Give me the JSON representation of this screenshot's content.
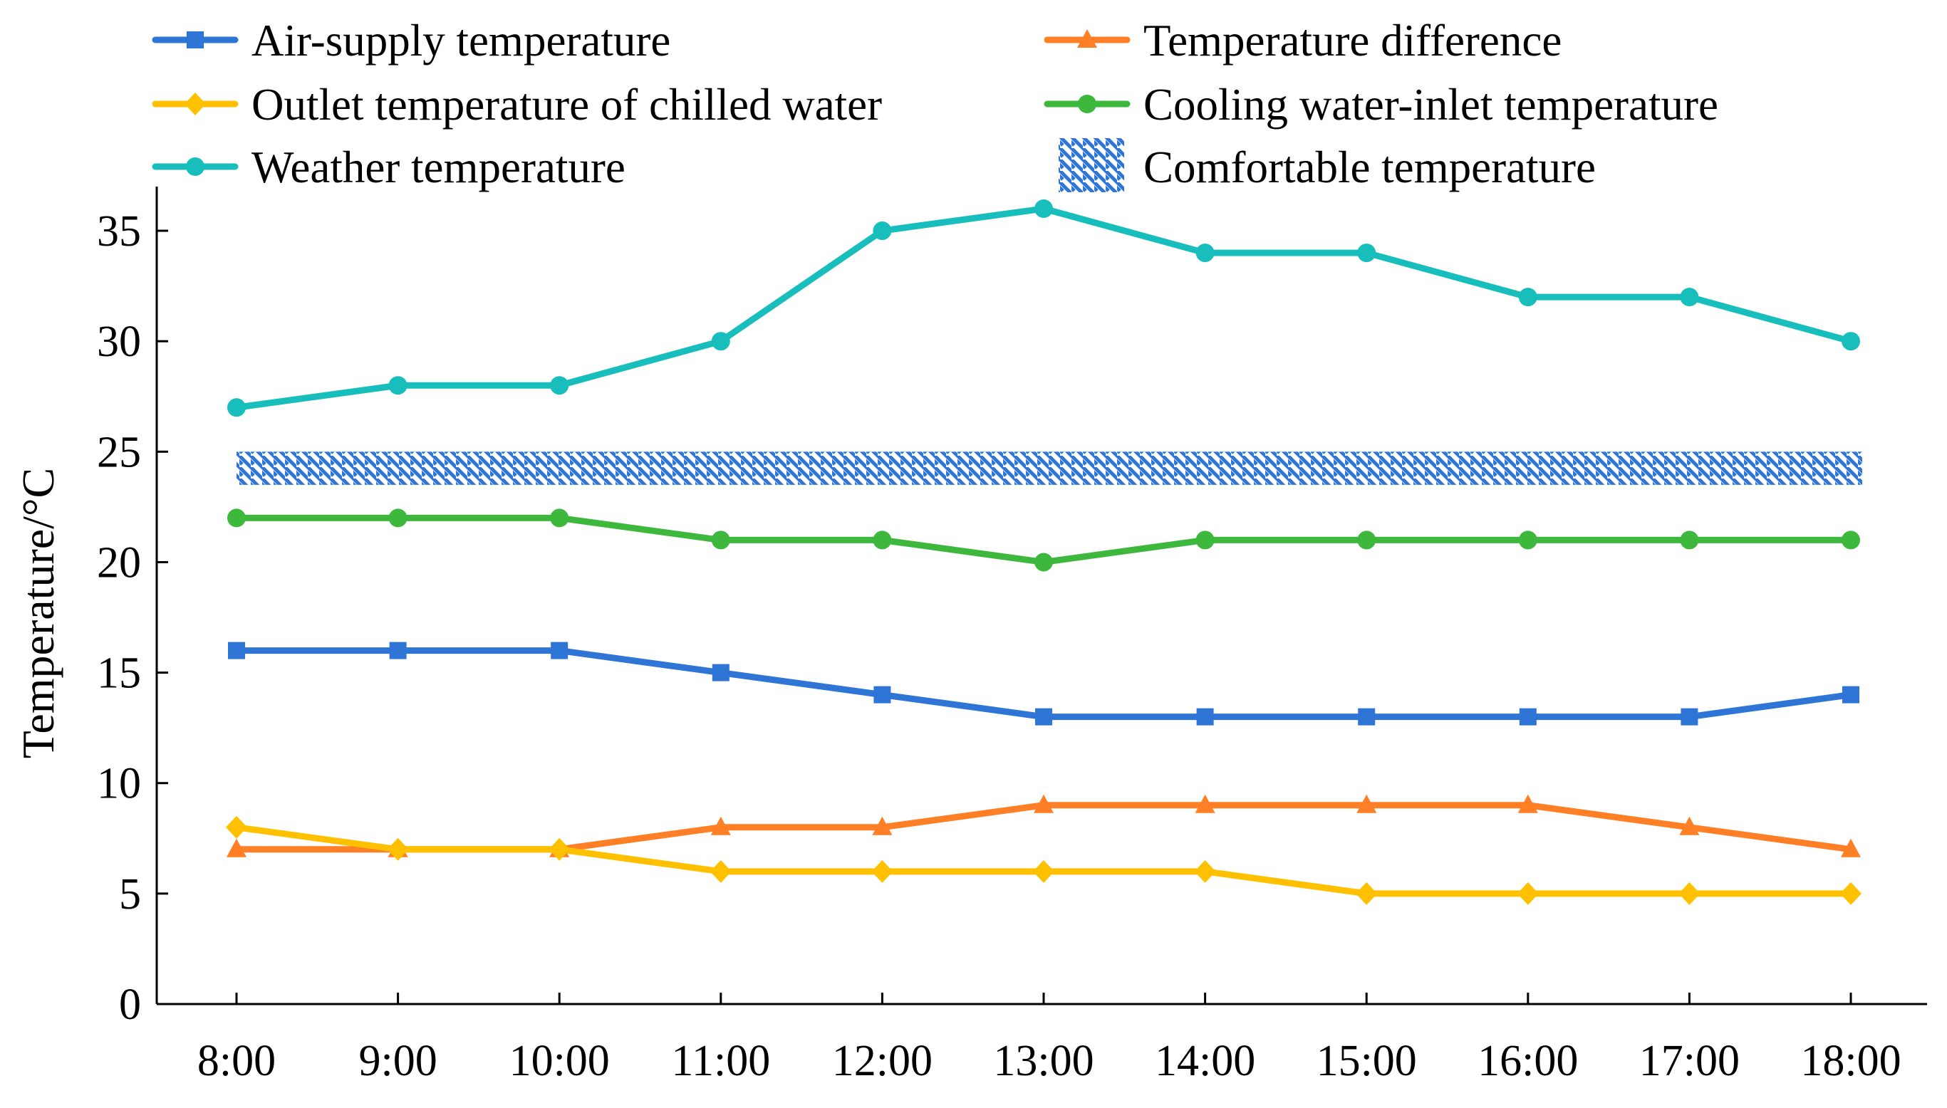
{
  "chart_data": {
    "type": "line",
    "title": "",
    "xlabel": "",
    "ylabel": "Temperature/°C",
    "categories": [
      "8:00",
      "9:00",
      "10:00",
      "11:00",
      "12:00",
      "13:00",
      "14:00",
      "15:00",
      "16:00",
      "17:00",
      "18:00"
    ],
    "ylim": [
      0,
      37
    ],
    "yticks": [
      "0",
      "5",
      "10",
      "15",
      "20",
      "25",
      "30",
      "35"
    ],
    "series": [
      {
        "name": "Air-supply temperature",
        "color": "#2E75D6",
        "marker": "square",
        "values": [
          16,
          16,
          16,
          15,
          14,
          13,
          13,
          13,
          13,
          13,
          14
        ]
      },
      {
        "name": "Temperature difference",
        "color": "#FF7F27",
        "marker": "triangle",
        "values": [
          7,
          7,
          7,
          8,
          8,
          9,
          9,
          9,
          9,
          8,
          7
        ]
      },
      {
        "name": "Outlet temperature of chilled water",
        "color": "#FFC000",
        "marker": "diamond",
        "values": [
          8,
          7,
          7,
          6,
          6,
          6,
          6,
          5,
          5,
          5,
          5
        ]
      },
      {
        "name": "Cooling water-inlet temperature",
        "color": "#3DB83D",
        "marker": "circle",
        "values": [
          22,
          22,
          22,
          21,
          21,
          20,
          21,
          21,
          21,
          21,
          21
        ]
      },
      {
        "name": "Weather temperature",
        "color": "#17BEBB",
        "marker": "circle",
        "values": [
          27,
          28,
          28,
          30,
          35,
          36,
          34,
          34,
          32,
          32,
          30
        ]
      }
    ],
    "band": {
      "name": "Comfortable temperature",
      "color": "#2E75D6",
      "range": [
        23.5,
        25
      ]
    },
    "legend_position": "top"
  }
}
